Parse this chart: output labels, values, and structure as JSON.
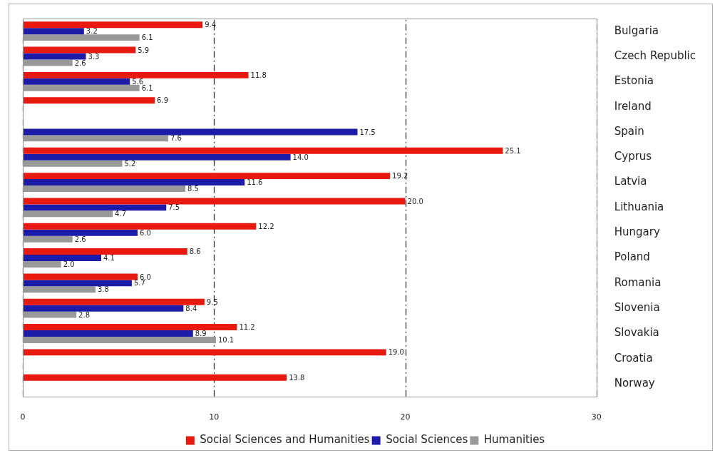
{
  "chart_data": {
    "type": "bar",
    "orientation": "horizontal",
    "categories": [
      "Bulgaria",
      "Czech Republic",
      "Estonia",
      "Ireland",
      "Spain",
      "Cyprus",
      "Latvia",
      "Lithuania",
      "Hungary",
      "Poland",
      "Romania",
      "Slovenia",
      "Slovakia",
      "Croatia",
      "Norway"
    ],
    "series": [
      {
        "name": "Social Sciences and Humanities",
        "color": "#e8190f",
        "values": [
          9.4,
          5.9,
          11.8,
          6.9,
          null,
          25.1,
          19.2,
          20.0,
          12.2,
          8.6,
          6.0,
          9.5,
          11.2,
          19.0,
          13.8
        ],
        "value_labels": [
          "9.4",
          "5.9",
          "11.8",
          "6.9",
          null,
          "25.1",
          "19.2",
          "20.0",
          "12.2",
          "8.6",
          "6.0",
          "9.5",
          "11.2",
          "19.0",
          "13.8"
        ]
      },
      {
        "name": "Social Sciences",
        "color": "#1c1ca8",
        "values": [
          3.2,
          3.3,
          5.6,
          null,
          17.5,
          14.0,
          11.6,
          7.5,
          6.0,
          4.1,
          5.7,
          8.4,
          8.9,
          null,
          null
        ],
        "value_labels": [
          "3.2",
          "3.3",
          "5.6",
          null,
          "17.5",
          "14.0",
          "11.6",
          "7.5",
          "6.0",
          "4.1",
          "5.7",
          "8.4",
          "8.9",
          null,
          null
        ]
      },
      {
        "name": "Humanities",
        "color": "#999999",
        "values": [
          6.1,
          2.6,
          6.1,
          null,
          7.6,
          5.2,
          8.5,
          4.7,
          2.6,
          2.0,
          3.8,
          2.8,
          10.1,
          null,
          null
        ],
        "value_labels": [
          "6.1",
          "2.6",
          "6.1",
          null,
          "7.6",
          "5.2",
          "8.5",
          "4.7",
          "2.6",
          "2.0",
          "3.8",
          "2.8",
          "10.1",
          null,
          null
        ]
      }
    ],
    "xlim": [
      0,
      30
    ],
    "xticks": [
      0,
      10,
      20,
      30
    ],
    "grid": "x",
    "legend": "bottom"
  }
}
